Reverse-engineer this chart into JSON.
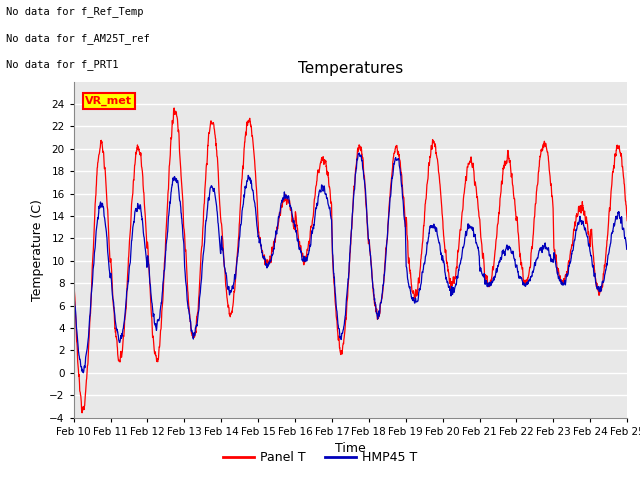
{
  "title": "Temperatures",
  "xlabel": "Time",
  "ylabel": "Temperature (C)",
  "ylim": [
    -4,
    26
  ],
  "yticks": [
    -4,
    -2,
    0,
    2,
    4,
    6,
    8,
    10,
    12,
    14,
    16,
    18,
    20,
    22,
    24
  ],
  "xtick_labels": [
    "Feb 10",
    "Feb 11",
    "Feb 12",
    "Feb 13",
    "Feb 14",
    "Feb 15",
    "Feb 16",
    "Feb 17",
    "Feb 18",
    "Feb 19",
    "Feb 20",
    "Feb 21",
    "Feb 22",
    "Feb 23",
    "Feb 24",
    "Feb 25"
  ],
  "color_panel": "#ff0000",
  "color_hmp": "#0000bb",
  "legend_labels": [
    "Panel T",
    "HMP45 T"
  ],
  "annotations": [
    "No data for f_Ref_Temp",
    "No data for f_AM25T_ref",
    "No data for f_PRT1"
  ],
  "tooltip_text": "VR_met",
  "background_color": "#ffffff",
  "plot_bg_color": "#e8e8e8",
  "grid_color": "#ffffff",
  "title_fontsize": 11,
  "axis_fontsize": 9,
  "tick_fontsize": 7.5
}
